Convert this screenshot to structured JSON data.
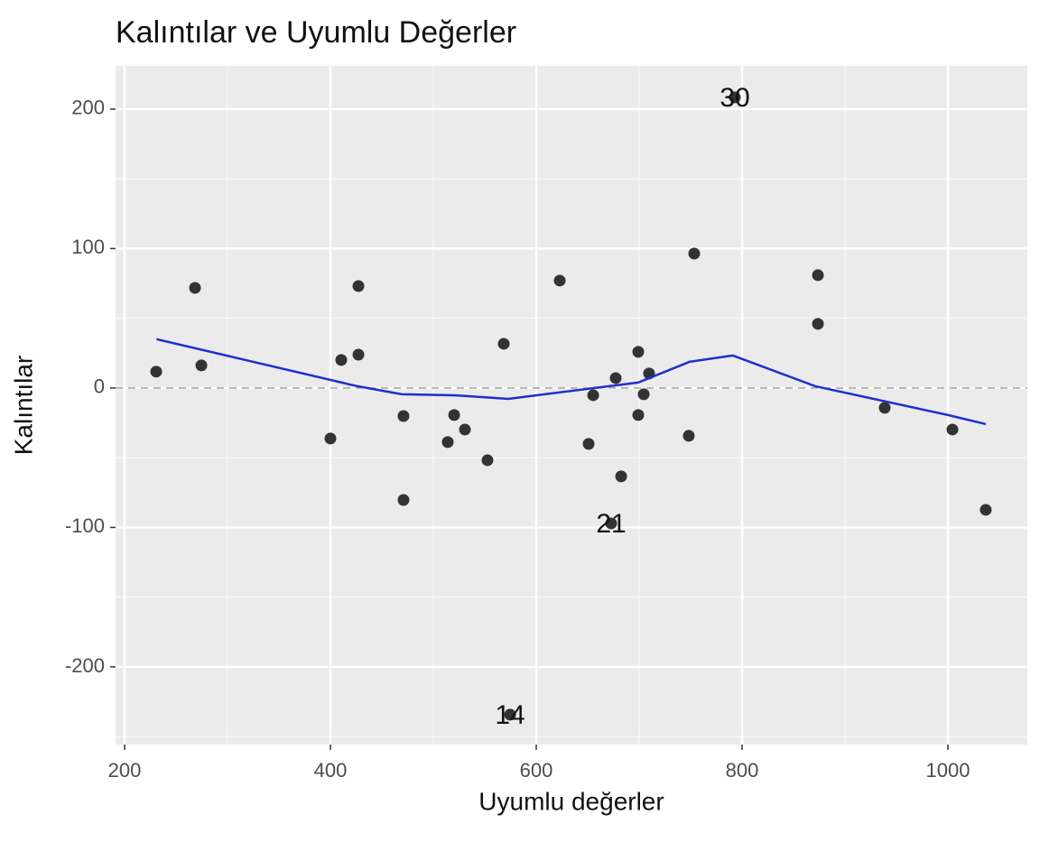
{
  "chart_data": {
    "type": "scatter",
    "title": "Kalıntılar ve Uyumlu Değerler",
    "x_label": "Uyumlu değerler",
    "y_label": "Kalıntılar",
    "xlim": [
      191.2,
      1077.2
    ],
    "ylim": [
      -255.7,
      231
    ],
    "xticks": [
      200,
      400,
      600,
      800,
      1000
    ],
    "yticks": [
      -200,
      -100,
      0,
      100,
      200
    ],
    "xminor": [
      300,
      500,
      700,
      900
    ],
    "yminor": [
      -250,
      -150,
      -50,
      50,
      150
    ],
    "grid": true,
    "hline": 0,
    "point_color": "#333333",
    "x": [
      230.7,
      268.4,
      274.6,
      400,
      410.5,
      427.2,
      427.2,
      471,
      471,
      514,
      520.2,
      530.7,
      552.6,
      568.4,
      574.6,
      622.8,
      650.9,
      655.3,
      672.8,
      677.2,
      682.5,
      699.1,
      699.1,
      704.4,
      709.6,
      748.2,
      753.5,
      793,
      873.7,
      873.7,
      938.6,
      1004.4,
      1036.8
    ],
    "values": [
      11.7,
      71.8,
      16.2,
      -36.2,
      20.1,
      23.9,
      73.1,
      -20.1,
      -80.3,
      -38.8,
      -19.4,
      -29.8,
      -51.8,
      31.7,
      -234.3,
      77,
      -40.1,
      -5.2,
      -97.1,
      7.1,
      -63.4,
      25.9,
      -19.4,
      -4.5,
      10.4,
      -34.3,
      96.4,
      208.4,
      80.9,
      46,
      -14.2,
      -29.8,
      -87.4
    ],
    "point_labels": [
      null,
      null,
      null,
      null,
      null,
      null,
      null,
      null,
      null,
      null,
      null,
      null,
      null,
      null,
      "14",
      null,
      null,
      null,
      "21",
      null,
      null,
      null,
      null,
      null,
      null,
      null,
      null,
      "30",
      null,
      null,
      null,
      null,
      null
    ],
    "smooth": {
      "color": "#1f2fcc",
      "x": [
        231,
        426,
        469.3,
        520,
        572.8,
        699,
        749,
        791,
        871,
        1000,
        1036.8
      ],
      "values": [
        35,
        1.3,
        -4.5,
        -5.2,
        -7.8,
        3.9,
        18.8,
        23.3,
        1.3,
        -19.4,
        -25.9
      ]
    }
  }
}
